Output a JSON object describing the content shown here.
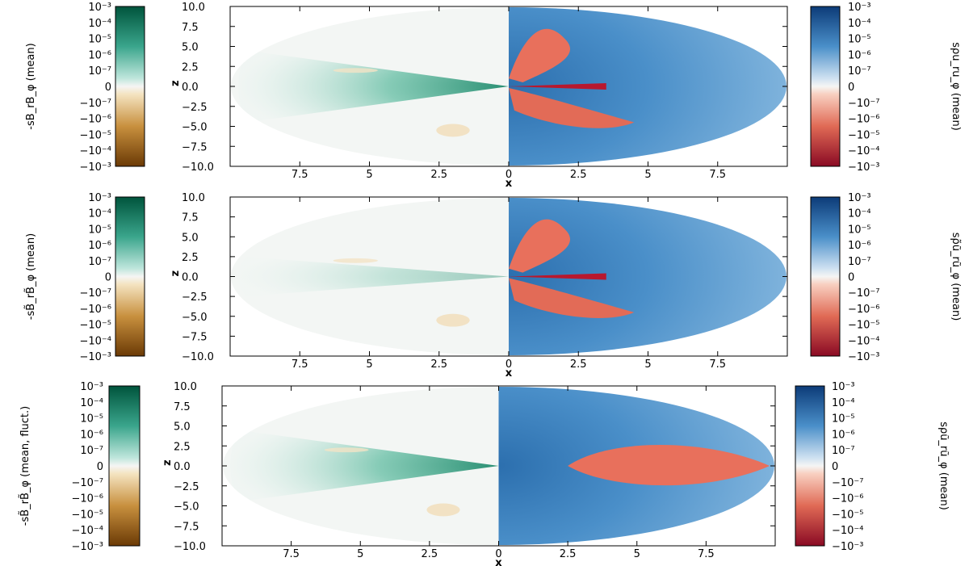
{
  "colors": {
    "green_dark": "#00543c",
    "green_mid": "#3aa58c",
    "green_light": "#bfe6dc",
    "brown_dark": "#6b3a05",
    "brown_mid": "#c8903e",
    "brown_light": "#f4e3c0",
    "blue_dark": "#0c3b78",
    "blue_mid": "#4a8fc9",
    "blue_light": "#cfe1f1",
    "red_dark": "#8a0a24",
    "red_mid": "#e06a55",
    "red_light": "#f8cfc0",
    "neutral": "#f5f5f4"
  },
  "chart_data": [
    {
      "type": "heatmap",
      "panel": "top",
      "xlabel": "x",
      "ylabel": "z",
      "xlim": [
        -10,
        10
      ],
      "ylim": [
        -10,
        10
      ],
      "x_ticks": [
        "7.5",
        "5",
        "2.5",
        "0",
        "2.5",
        "5",
        "7.5"
      ],
      "y_ticks": [
        "10.0",
        "7.5",
        "5.0",
        "2.5",
        "0.0",
        "−2.5",
        "−5.0",
        "−7.5",
        "−10.0"
      ],
      "left_colorbar": {
        "label": "−̅s̅B̅r̅B̅φ",
        "label_text": "-sB_rB_φ (mean)",
        "ticks": [
          "10⁻³",
          "10⁻⁴",
          "10⁻⁵",
          "10⁻⁶",
          "10⁻⁷",
          "0",
          "−10⁻⁷",
          "−10⁻⁶",
          "−10⁻⁵",
          "−10⁻⁴",
          "−10⁻³"
        ]
      },
      "right_colorbar": {
        "label_text": "sρu_ru_φ (mean)",
        "ticks": [
          "10⁻³",
          "10⁻⁴",
          "10⁻⁵",
          "10⁻⁶",
          "10⁻⁷",
          "0",
          "−10⁻⁷",
          "−10⁻⁶",
          "−10⁻⁵",
          "−10⁻⁴",
          "−10⁻³"
        ]
      },
      "left_half": "Maxwell stress, mostly positive (green), sign: positive",
      "right_half": "Reynolds stress: positive (blue) outer, negative (red) inner lobes"
    },
    {
      "type": "heatmap",
      "panel": "middle",
      "xlabel": "x",
      "ylabel": "z",
      "xlim": [
        -10,
        10
      ],
      "ylim": [
        -10,
        10
      ],
      "x_ticks": [
        "7.5",
        "5",
        "2.5",
        "0",
        "2.5",
        "5",
        "7.5"
      ],
      "y_ticks": [
        "10.0",
        "7.5",
        "5.0",
        "2.5",
        "0.0",
        "−2.5",
        "−5.0",
        "−7.5",
        "−10.0"
      ],
      "left_colorbar": {
        "label_text": "-sB̃_rB̃_φ (mean)",
        "ticks": [
          "10⁻³",
          "10⁻⁴",
          "10⁻⁵",
          "10⁻⁶",
          "10⁻⁷",
          "0",
          "−10⁻⁷",
          "−10⁻⁶",
          "−10⁻⁵",
          "−10⁻⁴",
          "−10⁻³"
        ]
      },
      "right_colorbar": {
        "label_text": "sρ̃ũ_rũ_φ (mean)",
        "ticks": [
          "10⁻³",
          "10⁻⁴",
          "10⁻⁵",
          "10⁻⁶",
          "10⁻⁷",
          "0",
          "−10⁻⁷",
          "−10⁻⁶",
          "−10⁻⁵",
          "−10⁻⁴",
          "−10⁻³"
        ]
      }
    },
    {
      "type": "heatmap",
      "panel": "bottom",
      "xlabel": "x",
      "ylabel": "z",
      "xlim": [
        -10,
        10
      ],
      "ylim": [
        -10,
        10
      ],
      "x_ticks": [
        "7.5",
        "5",
        "2.5",
        "0",
        "2.5",
        "5",
        "7.5"
      ],
      "y_ticks": [
        "10.0",
        "7.5",
        "5.0",
        "2.5",
        "0.0",
        "−2.5",
        "−5.0",
        "−7.5",
        "−10.0"
      ],
      "left_colorbar": {
        "label_text": "-sB̃_rB̃_φ (mean, fluct.)",
        "ticks": [
          "10⁻³",
          "10⁻⁴",
          "10⁻⁵",
          "10⁻⁶",
          "10⁻⁷",
          "0",
          "−10⁻⁷",
          "−10⁻⁶",
          "−10⁻⁵",
          "−10⁻⁴",
          "−10⁻³"
        ]
      },
      "right_colorbar": {
        "label_text": "sρũ_rũ_φ (mean)",
        "ticks": [
          "10⁻³",
          "10⁻⁴",
          "10⁻⁵",
          "10⁻⁶",
          "10⁻⁷",
          "0",
          "−10⁻⁷",
          "−10⁻⁶",
          "−10⁻⁵",
          "−10⁻⁴",
          "−10⁻³"
        ]
      }
    }
  ]
}
